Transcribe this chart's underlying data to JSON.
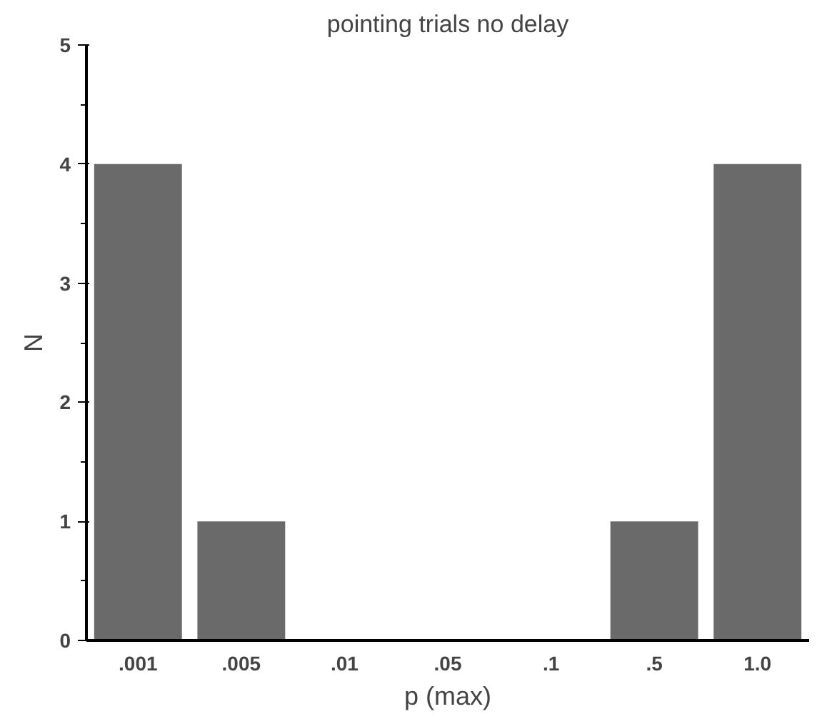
{
  "chart_data": {
    "type": "bar",
    "title": "pointing trials no delay",
    "xlabel": "p (max)",
    "ylabel": "N",
    "categories": [
      ".001",
      ".005",
      ".01",
      ".05",
      ".1",
      ".5",
      "1.0"
    ],
    "values": [
      4,
      1,
      0,
      0,
      0,
      1,
      4
    ],
    "color": "#6a6a6a",
    "ylim": [
      0,
      5
    ],
    "yticks": [
      0,
      1,
      2,
      3,
      4,
      5
    ],
    "grid": false
  }
}
